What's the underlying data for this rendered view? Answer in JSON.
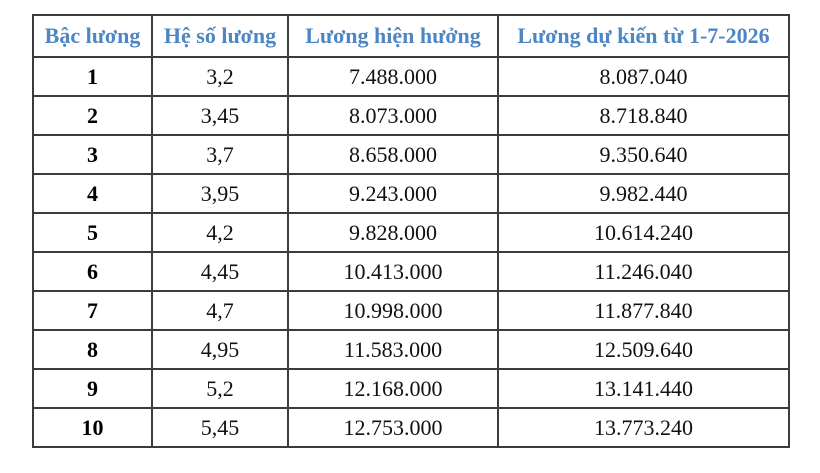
{
  "chart_data": {
    "type": "table",
    "title": "",
    "columns": [
      "Bậc lương",
      "Hệ số lương",
      "Lương hiện hưởng",
      "Lương dự kiến từ 1-7-2026"
    ],
    "rows": [
      [
        "1",
        "3,2",
        "7.488.000",
        "8.087.040"
      ],
      [
        "2",
        "3,45",
        "8.073.000",
        "8.718.840"
      ],
      [
        "3",
        "3,7",
        "8.658.000",
        "9.350.640"
      ],
      [
        "4",
        "3,95",
        "9.243.000",
        "9.982.440"
      ],
      [
        "5",
        "4,2",
        "9.828.000",
        "10.614.240"
      ],
      [
        "6",
        "4,45",
        "10.413.000",
        "11.246.040"
      ],
      [
        "7",
        "4,7",
        "10.998.000",
        "11.877.840"
      ],
      [
        "8",
        "4,95",
        "11.583.000",
        "12.509.640"
      ],
      [
        "9",
        "5,2",
        "12.168.000",
        "13.141.440"
      ],
      [
        "10",
        "5,45",
        "12.753.000",
        "13.773.240"
      ]
    ],
    "layout": {
      "grid": true,
      "header_text_color": "#4d86c3",
      "body_text_color": "#111111",
      "border_color": "#3c3c3c",
      "background_color": "#ffffff"
    }
  }
}
